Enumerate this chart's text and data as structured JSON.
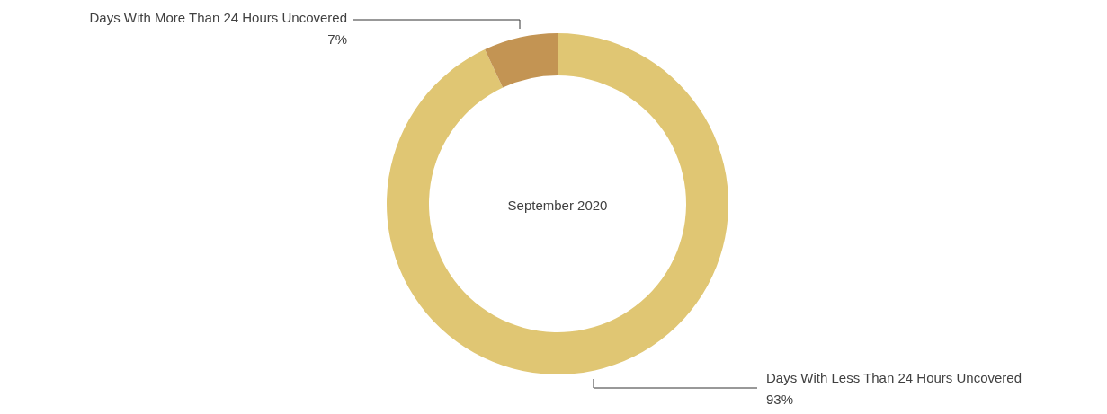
{
  "chart_data": {
    "type": "donut",
    "title": "September 2020",
    "categories": [
      "Days With Less Than 24 Hours Uncovered",
      "Days With More Than 24 Hours Uncovered"
    ],
    "values": [
      93,
      7
    ],
    "colors": [
      "#e0c673",
      "#c39453"
    ],
    "value_labels": [
      "93%",
      "7%"
    ]
  }
}
